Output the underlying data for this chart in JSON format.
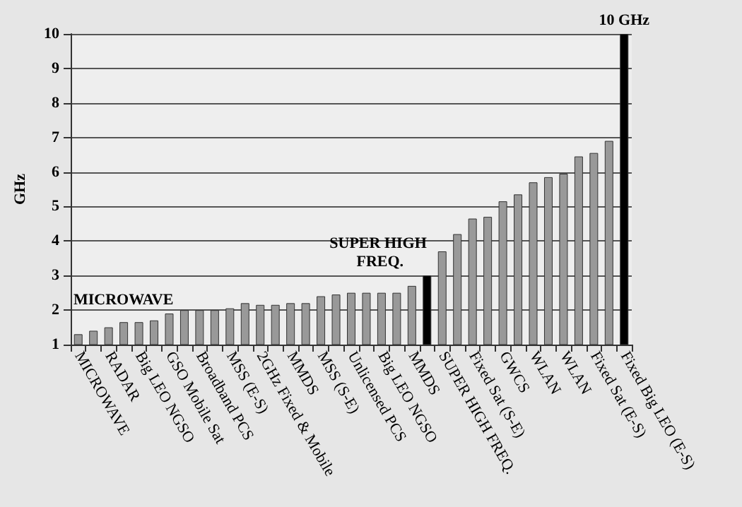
{
  "chart_data": {
    "type": "bar",
    "ylabel": "GHz",
    "categories": [
      "MICROWAVE",
      null,
      "RADAR",
      null,
      "Big LEO NGSO",
      null,
      "GSO Mobile Sat",
      null,
      "Broadband PCS",
      null,
      "MSS (E-S)",
      null,
      "2GHz Fixed & Mobile",
      null,
      "MMDS",
      null,
      "MSS (S-E)",
      null,
      "Unlicensed PCS",
      null,
      "Big LEO NGSO",
      null,
      "MMDS",
      null,
      "SUPER HIGH FREQ.",
      null,
      "Fixed Sat (S-E)",
      null,
      "GWCS",
      null,
      "WLAN",
      null,
      "WLAN",
      null,
      "Fixed Sat (E-S)",
      null,
      "Fixed Big LEO (E-S)"
    ],
    "values": [
      1.3,
      1.4,
      1.5,
      1.65,
      1.65,
      1.7,
      1.9,
      2.0,
      2.0,
      2.0,
      2.05,
      2.2,
      2.15,
      2.15,
      2.2,
      2.2,
      2.4,
      2.45,
      2.5,
      2.5,
      2.5,
      2.5,
      2.7,
      3.0,
      3.7,
      4.2,
      4.65,
      4.7,
      5.15,
      5.35,
      5.7,
      5.85,
      5.95,
      6.45,
      6.55,
      6.9,
      10
    ],
    "colors": [
      "#999999",
      "#999999",
      "#999999",
      "#999999",
      "#999999",
      "#999999",
      "#999999",
      "#999999",
      "#999999",
      "#999999",
      "#999999",
      "#999999",
      "#999999",
      "#999999",
      "#999999",
      "#999999",
      "#999999",
      "#999999",
      "#999999",
      "#999999",
      "#999999",
      "#999999",
      "#999999",
      "#000000",
      "#999999",
      "#999999",
      "#999999",
      "#999999",
      "#999999",
      "#999999",
      "#999999",
      "#999999",
      "#999999",
      "#999999",
      "#999999",
      "#999999",
      "#000000"
    ],
    "ylim": [
      1,
      10
    ],
    "yticks": [
      1,
      2,
      3,
      4,
      5,
      6,
      7,
      8,
      9,
      10
    ],
    "grid": "y",
    "annotations": [
      {
        "text": "MICROWAVE",
        "x": "MICROWAVE",
        "y": 1.3
      },
      {
        "text": "SUPER HIGH FREQ.",
        "x": "SUPER HIGH FREQ.",
        "y": 3.0
      },
      {
        "text": "10 GHz",
        "x": "Fixed Big LEO (E-S)",
        "y": 10
      }
    ]
  }
}
